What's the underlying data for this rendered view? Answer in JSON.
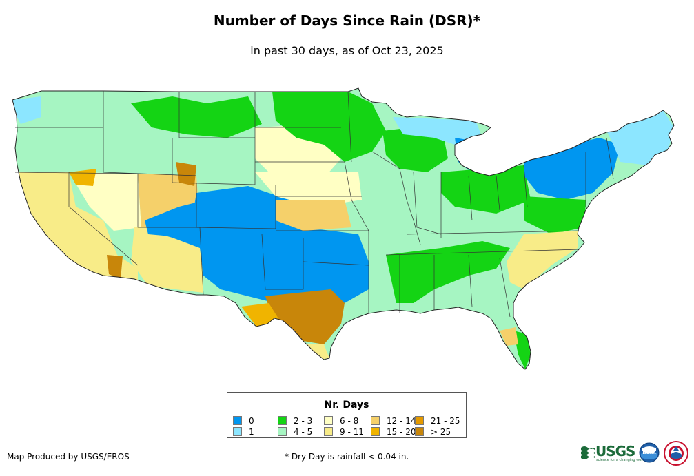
{
  "title": "Number of Days Since Rain (DSR)*",
  "subtitle": "in past 30 days, as of Oct 23, 2025",
  "legend": {
    "title": "Nr. Days",
    "items": [
      {
        "label": "0",
        "color": "#0096f0"
      },
      {
        "label": "1",
        "color": "#8ce6ff"
      },
      {
        "label": "2 - 3",
        "color": "#14d414"
      },
      {
        "label": "4 - 5",
        "color": "#a6f5c2"
      },
      {
        "label": "6 - 8",
        "color": "#ffffc4"
      },
      {
        "label": "9 - 11",
        "color": "#f8ec88"
      },
      {
        "label": "12 - 14",
        "color": "#f5d06a"
      },
      {
        "label": "15 - 20",
        "color": "#f0b400"
      },
      {
        "label": "21 - 25",
        "color": "#e59a00"
      },
      {
        "label": "> 25",
        "color": "#c8860a"
      }
    ]
  },
  "footer": {
    "producer": "Map Produced by USGS/EROS",
    "note": "* Dry Day is rainfall < 0.04 in."
  },
  "logos": {
    "usgs_text": "USGS",
    "usgs_tagline": "science for a changing world",
    "noaa_text": "NOAA"
  }
}
